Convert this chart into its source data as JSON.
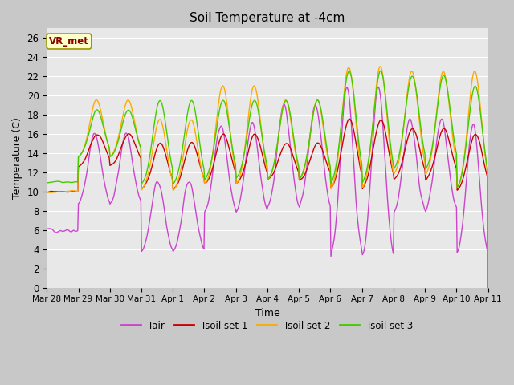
{
  "title": "Soil Temperature at -4cm",
  "xlabel": "Time",
  "ylabel": "Temperature (C)",
  "ylim": [
    0,
    27
  ],
  "yticks": [
    0,
    2,
    4,
    6,
    8,
    10,
    12,
    14,
    16,
    18,
    20,
    22,
    24,
    26
  ],
  "bg_color": "#e8e8e8",
  "line_colors": {
    "Tair": "#cc44cc",
    "Tsoil set 1": "#cc0000",
    "Tsoil set 2": "#ffaa00",
    "Tsoil set 3": "#44cc00"
  },
  "legend_label": "VR_met",
  "x_tick_labels": [
    "Mar 28",
    "Mar 29",
    "Mar 30",
    "Mar 31",
    "Apr 1",
    "Apr 2",
    "Apr 3",
    "Apr 4",
    "Apr 5",
    "Apr 6",
    "Apr 7",
    "Apr 8",
    "Apr 9",
    "Apr 10",
    "Apr 11"
  ],
  "n_days": 14,
  "pts_per_day": 48,
  "tair_night_vals": [
    6,
    8.5,
    8.5,
    3.5,
    3.5,
    7.5,
    7.5,
    8,
    8,
    2.5,
    2.5,
    7.5,
    7.5,
    2.8,
    2.8,
    6.5,
    6.5,
    4,
    4,
    7,
    7,
    3.8,
    3.8,
    7,
    7,
    6
  ],
  "tair_day_vals": [
    6,
    16,
    16,
    11,
    11,
    17,
    17,
    19,
    19,
    21,
    21,
    17.5,
    17.5,
    17,
    17,
    20,
    20,
    17.5,
    17.5,
    17.5,
    17.5,
    18,
    18,
    18.5,
    18.5,
    6
  ],
  "tsoil1_night_vals": [
    10,
    12.5,
    12.5,
    10,
    10,
    10.5,
    10.5,
    11,
    11,
    10,
    10,
    11,
    11,
    9.8,
    9.8,
    11,
    11,
    11,
    11,
    10,
    10,
    10,
    10,
    10,
    10,
    11
  ],
  "tsoil1_day_vals": [
    10,
    16,
    16,
    15,
    15,
    16,
    16,
    15,
    15,
    17.5,
    17.5,
    16.5,
    16.5,
    16,
    16,
    17,
    17,
    17,
    17,
    17,
    17,
    16.5,
    16.5,
    17,
    17,
    11
  ],
  "tsoil2_night_vals": [
    10,
    13.5,
    13.5,
    10,
    10,
    10.5,
    10.5,
    11,
    11,
    10,
    10,
    11.5,
    11.5,
    10,
    10,
    11,
    11,
    11,
    11,
    10,
    10,
    10,
    10,
    10,
    10,
    11
  ],
  "tsoil2_day_vals": [
    10,
    19.5,
    19.5,
    17.5,
    17.5,
    21,
    21,
    19.5,
    19.5,
    23,
    23,
    22.5,
    22.5,
    22.5,
    22.5,
    22.5,
    22.5,
    22.5,
    22.5,
    22.5,
    22.5,
    23.5,
    23.5,
    24.5,
    24.5,
    11
  ],
  "tsoil3_night_vals": [
    11,
    13.5,
    13.5,
    10.5,
    10.5,
    11,
    11,
    11,
    11,
    10.5,
    10.5,
    12,
    12,
    10,
    10,
    11.5,
    11.5,
    11.5,
    11.5,
    10,
    10,
    10.5,
    10.5,
    10,
    10,
    11
  ],
  "tsoil3_day_vals": [
    11,
    18.5,
    18.5,
    19.5,
    19.5,
    19.5,
    19.5,
    19.5,
    19.5,
    22.5,
    22.5,
    22,
    22,
    21,
    21,
    21,
    21,
    20.5,
    20.5,
    22,
    22,
    21,
    21,
    24,
    24,
    11
  ]
}
